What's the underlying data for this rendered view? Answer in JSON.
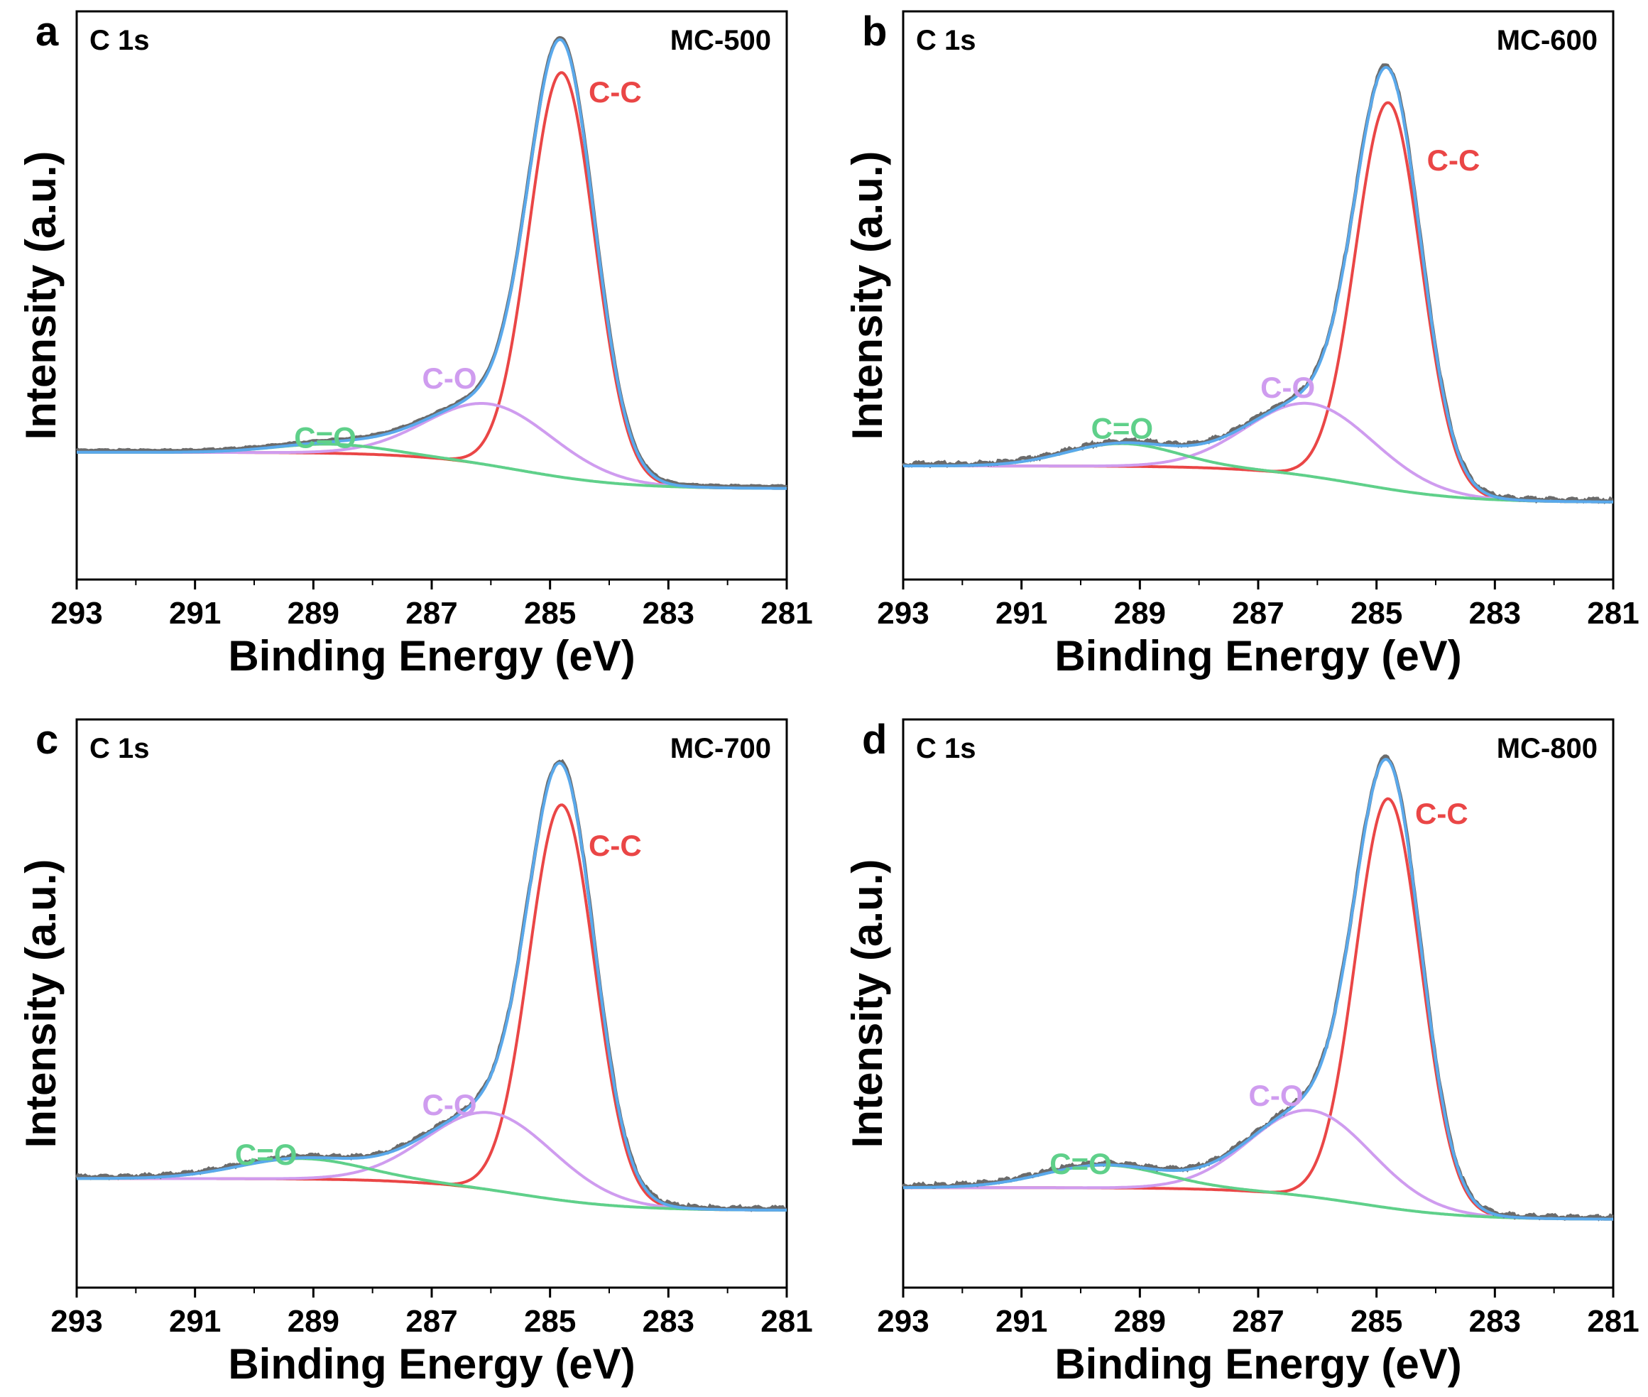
{
  "colors": {
    "raw": "#6b6b6b",
    "envelope": "#5aa9ec",
    "cc": "#ea4646",
    "co": "#cf9cef",
    "coo": "#5fd08a",
    "background": "#b5622a"
  },
  "chart_data": [
    {
      "panel": "a",
      "type": "line",
      "title": "C 1s",
      "sample": "MC-500",
      "xlabel": "Binding Energy (eV)",
      "ylabel": "Intensity (a.u.)",
      "xlim": [
        293,
        281
      ],
      "xticks": [
        "293",
        "291",
        "289",
        "287",
        "285",
        "283",
        "281"
      ],
      "ylim": [
        -0.1,
        1.15
      ],
      "background": {
        "left": 0.18,
        "right": 0.1,
        "center": 285.5,
        "width": 0.9
      },
      "noise": 0.0015,
      "series": [
        {
          "name": "C-C",
          "center": 284.8,
          "amplitude": 0.89,
          "fwhm": 1.3,
          "label_x": 283.9,
          "label_y": 0.95
        },
        {
          "name": "C-O",
          "center": 286.0,
          "amplitude": 0.135,
          "fwhm": 2.5,
          "label_x": 286.7,
          "label_y": 0.32
        },
        {
          "name": "C=O",
          "center": 288.7,
          "amplitude": 0.02,
          "fwhm": 2.2,
          "label_x": 288.8,
          "label_y": 0.19
        }
      ]
    },
    {
      "panel": "b",
      "type": "line",
      "title": "C 1s",
      "sample": "MC-600",
      "xlabel": "Binding Energy (eV)",
      "ylabel": "Intensity (a.u.)",
      "xlim": [
        293,
        281
      ],
      "xticks": [
        "293",
        "291",
        "289",
        "287",
        "285",
        "283",
        "281"
      ],
      "ylim": [
        -0.1,
        1.15
      ],
      "background": {
        "left": 0.15,
        "right": 0.07,
        "center": 285.3,
        "width": 0.9
      },
      "noise": 0.004,
      "series": [
        {
          "name": "C-C",
          "center": 284.8,
          "amplitude": 0.85,
          "fwhm": 1.3,
          "label_x": 283.7,
          "label_y": 0.8
        },
        {
          "name": "C-O",
          "center": 286.1,
          "amplitude": 0.16,
          "fwhm": 2.5,
          "label_x": 286.5,
          "label_y": 0.3
        },
        {
          "name": "C=O",
          "center": 289.3,
          "amplitude": 0.05,
          "fwhm": 2.2,
          "label_x": 289.3,
          "label_y": 0.21
        }
      ]
    },
    {
      "panel": "c",
      "type": "line",
      "title": "C 1s",
      "sample": "MC-700",
      "xlabel": "Binding Energy (eV)",
      "ylabel": "Intensity (a.u.)",
      "xlim": [
        293,
        281
      ],
      "xticks": [
        "293",
        "291",
        "289",
        "287",
        "285",
        "283",
        "281"
      ],
      "ylim": [
        -0.1,
        1.15
      ],
      "background": {
        "left": 0.14,
        "right": 0.07,
        "center": 285.5,
        "width": 0.9
      },
      "noise": 0.0035,
      "series": [
        {
          "name": "C-C",
          "center": 284.8,
          "amplitude": 0.87,
          "fwhm": 1.3,
          "label_x": 283.9,
          "label_y": 0.85
        },
        {
          "name": "C-O",
          "center": 286.0,
          "amplitude": 0.17,
          "fwhm": 2.5,
          "label_x": 286.7,
          "label_y": 0.28
        },
        {
          "name": "C=O",
          "center": 289.2,
          "amplitude": 0.045,
          "fwhm": 2.5,
          "label_x": 289.8,
          "label_y": 0.17
        }
      ]
    },
    {
      "panel": "d",
      "type": "line",
      "title": "C 1s",
      "sample": "MC-800",
      "xlabel": "Binding Energy (eV)",
      "ylabel": "Intensity (a.u.)",
      "xlim": [
        293,
        281
      ],
      "xticks": [
        "293",
        "291",
        "289",
        "287",
        "285",
        "283",
        "281"
      ],
      "ylim": [
        -0.1,
        1.15
      ],
      "background": {
        "left": 0.12,
        "right": 0.05,
        "center": 285.3,
        "width": 0.9
      },
      "noise": 0.004,
      "series": [
        {
          "name": "C-C",
          "center": 284.8,
          "amplitude": 0.9,
          "fwhm": 1.3,
          "label_x": 283.9,
          "label_y": 0.92
        },
        {
          "name": "C-O",
          "center": 286.1,
          "amplitude": 0.19,
          "fwhm": 2.4,
          "label_x": 286.7,
          "label_y": 0.3
        },
        {
          "name": "C=O",
          "center": 289.6,
          "amplitude": 0.05,
          "fwhm": 2.4,
          "label_x": 290.0,
          "label_y": 0.15
        }
      ]
    }
  ]
}
